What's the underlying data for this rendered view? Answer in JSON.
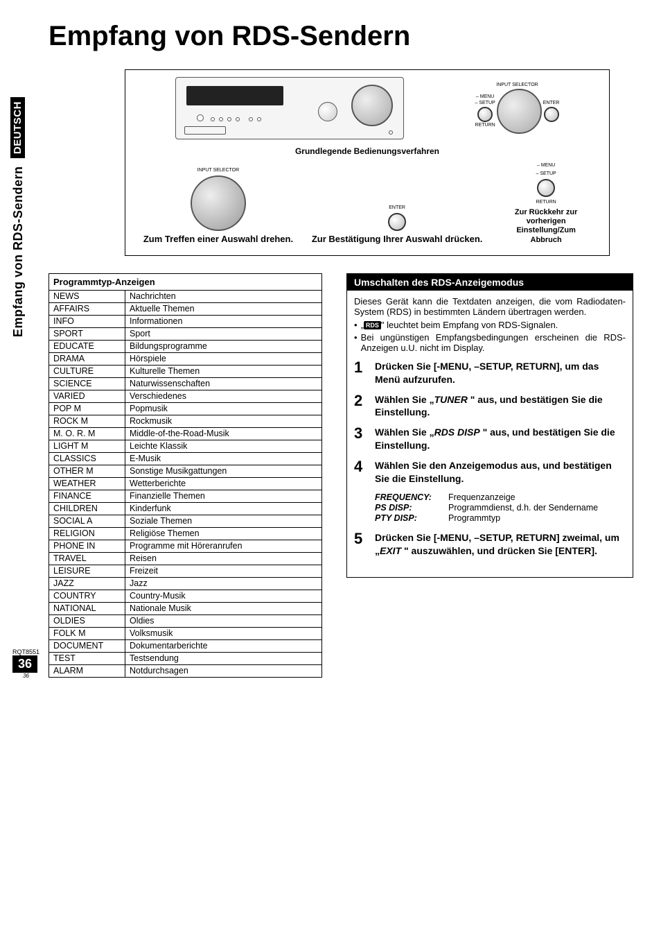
{
  "sideTab": {
    "language": "DEUTSCH",
    "section": "Empfang von RDS-Sendern"
  },
  "title": "Empfang von RDS-Sendern",
  "diagram": {
    "inputSelectorLabel": "INPUT SELECTOR",
    "menuLabel": "– MENU",
    "setupLabel": "– SETUP",
    "returnLabel": "RETURN",
    "enterLabel": "ENTER",
    "midHeading": "Grundlegende Bedienungsverfahren",
    "rotateCaption": "Zum Treffen einer Auswahl drehen.",
    "confirmCaption": "Zur Bestätigung Ihrer Auswahl drücken.",
    "backCaption": "Zur Rückkehr zur vorherigen Einstellung/Zum Abbruch"
  },
  "progTable": {
    "header": "Programmtyp-Anzeigen",
    "rows": [
      [
        "NEWS",
        "Nachrichten"
      ],
      [
        "AFFAIRS",
        "Aktuelle Themen"
      ],
      [
        "INFO",
        "Informationen"
      ],
      [
        "SPORT",
        "Sport"
      ],
      [
        "EDUCATE",
        "Bildungsprogramme"
      ],
      [
        "DRAMA",
        "Hörspiele"
      ],
      [
        "CULTURE",
        "Kulturelle Themen"
      ],
      [
        "SCIENCE",
        "Naturwissenschaften"
      ],
      [
        "VARIED",
        "Verschiedenes"
      ],
      [
        "POP M",
        "Popmusik"
      ],
      [
        "ROCK M",
        "Rockmusik"
      ],
      [
        "M. O. R.  M",
        "Middle-of-the-Road-Musik"
      ],
      [
        "LIGHT M",
        "Leichte Klassik"
      ],
      [
        "CLASSICS",
        "E-Musik"
      ],
      [
        "OTHER M",
        "Sonstige Musikgattungen"
      ],
      [
        "WEATHER",
        "Wetterberichte"
      ],
      [
        "FINANCE",
        "Finanzielle Themen"
      ],
      [
        "CHILDREN",
        "Kinderfunk"
      ],
      [
        "SOCIAL A",
        "Soziale Themen"
      ],
      [
        "RELIGION",
        "Religiöse Themen"
      ],
      [
        "PHONE IN",
        "Programme mit Höreranrufen"
      ],
      [
        "TRAVEL",
        "Reisen"
      ],
      [
        "LEISURE",
        "Freizeit"
      ],
      [
        "JAZZ",
        "Jazz"
      ],
      [
        "COUNTRY",
        "Country-Musik"
      ],
      [
        "NATIONAL",
        "Nationale Musik"
      ],
      [
        "OLDIES",
        "Oldies"
      ],
      [
        "FOLK M",
        "Volksmusik"
      ],
      [
        "DOCUMENT",
        "Dokumentarberichte"
      ],
      [
        "TEST",
        "Testsendung"
      ],
      [
        "ALARM",
        "Notdurchsagen"
      ]
    ]
  },
  "rightSection": {
    "header": "Umschalten des RDS-Anzeigemodus",
    "intro": "Dieses Gerät kann die Textdaten anzeigen, die vom Radiodaten-System (RDS) in bestimmten Ländern übertragen werden.",
    "rdsBadge": "RDS",
    "rdsLine": "\" leuchtet beim Empfang von RDS-Signalen.",
    "bullet1": "Bei ungünstigen Empfangsbedingungen erscheinen die RDS-Anzeigen u.U. nicht im Display.",
    "steps": [
      {
        "n": "1",
        "text": "Drücken Sie [-MENU, –SETUP, RETURN], um das Menü aufzurufen."
      },
      {
        "n": "2",
        "text_a": "Wählen Sie „",
        "it": "TUNER",
        "text_b": " \" aus, und bestätigen Sie die Einstellung."
      },
      {
        "n": "3",
        "text_a": "Wählen Sie „",
        "it": "RDS DISP",
        "text_b": " \" aus, und bestätigen Sie die Einstellung."
      },
      {
        "n": "4",
        "text": "Wählen Sie den Anzeigemodus aus, und bestätigen Sie die Einstellung."
      },
      {
        "n": "5",
        "text_a": "Drücken Sie [-MENU, –SETUP, RETURN] zweimal, um „",
        "it": "EXIT",
        "text_b": " \" auszuwählen, und drücken Sie [ENTER]."
      }
    ],
    "defs": [
      {
        "k": "FREQUENCY:",
        "v": "Frequenzanzeige"
      },
      {
        "k": "PS DISP:",
        "v": "Programmdienst, d.h. der Sendername"
      },
      {
        "k": "PTY DISP:",
        "v": "Programmtyp"
      }
    ]
  },
  "footer": {
    "rqt": "RQT8551",
    "page": "36",
    "sub": "36"
  },
  "colors": {
    "text": "#000000",
    "background": "#ffffff",
    "headerBg": "#000000",
    "headerFg": "#ffffff",
    "deviceBody": "#f5f5f5",
    "dialGradientLight": "#eeeeee",
    "dialGradientDark": "#999999"
  },
  "typography": {
    "title_fontsize": 40,
    "body_fontsize": 13,
    "table_fontsize": 12.5,
    "stepnum_fontsize": 22,
    "font_family": "Arial, Helvetica, sans-serif"
  }
}
